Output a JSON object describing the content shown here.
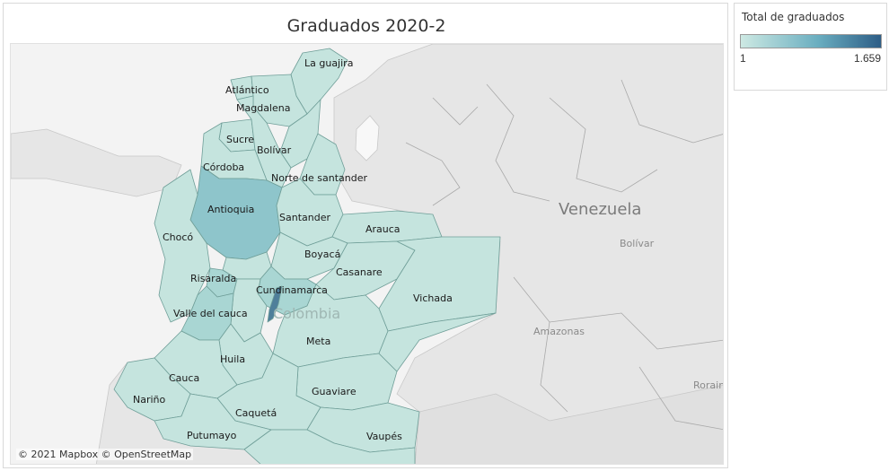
{
  "title": "Graduados 2020-2",
  "attribution": "© 2021 Mapbox © OpenStreetMap",
  "legend": {
    "title": "Total de graduados",
    "min_label": "1",
    "max_label": "1.659",
    "color_low": "#cde9e3",
    "color_high": "#2d5d86"
  },
  "colors": {
    "department_fill": "#c5e4de",
    "department_mid": "#a9d6d3",
    "department_high": "#8ec5cb",
    "department_max": "#4f7f9a",
    "land": "#e8e8e8",
    "sea": "#f3f3f3"
  },
  "map": {
    "countries": {
      "venezuela": "Venezuela",
      "colombia": "Colombia"
    },
    "regions": {
      "bolivar_ve": "Bolívar",
      "amazonas_ve": "Amazonas",
      "roraima": "Roraim"
    },
    "departments": {
      "la_guajira": "La guajira",
      "atlantico": "Atlántico",
      "magdalena": "Magdalena",
      "sucre": "Sucre",
      "bolivar": "Bolívar",
      "cordoba": "Córdoba",
      "norte_de_santander": "Norte de santander",
      "antioquia": "Antioquia",
      "santander": "Santander",
      "arauca": "Arauca",
      "choco": "Chocó",
      "boyaca": "Boyacá",
      "casanare": "Casanare",
      "risaralda": "Risaralda",
      "cundinamarca": "Cundinamarca",
      "vichada": "Vichada",
      "valle_del_cauca": "Valle del cauca",
      "meta": "Meta",
      "huila": "Huila",
      "cauca": "Cauca",
      "guaviare": "Guaviare",
      "narino": "Nariño",
      "caqueta": "Caquetá",
      "putumayo": "Putumayo",
      "vaupes": "Vaupés"
    }
  }
}
